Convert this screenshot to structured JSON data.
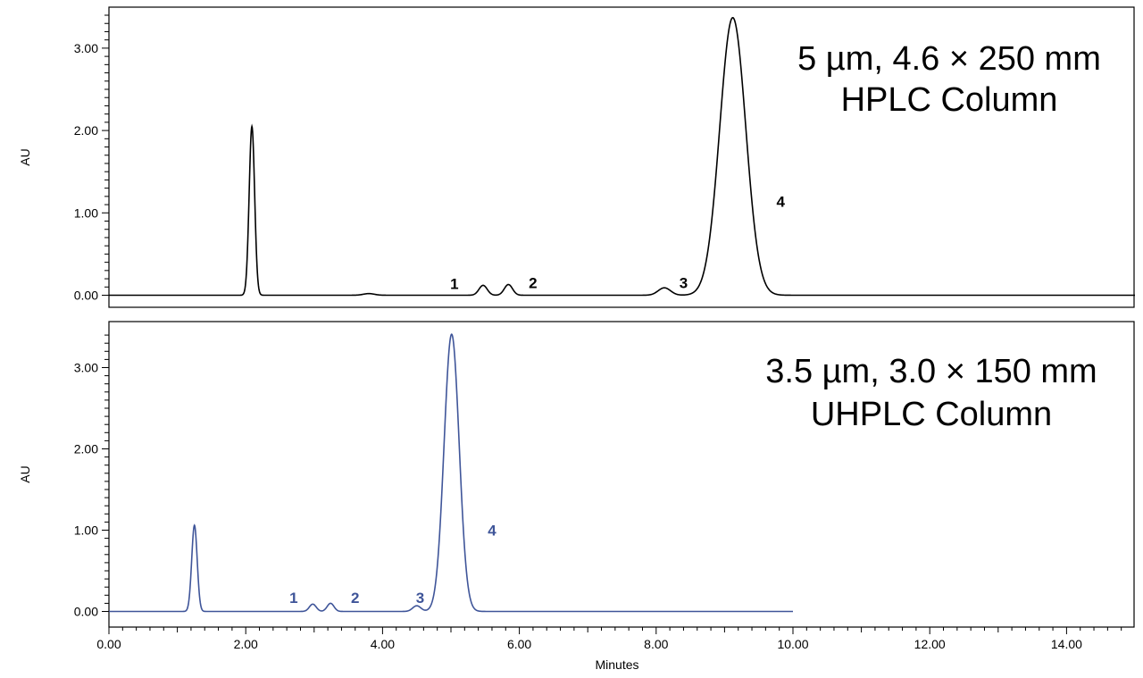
{
  "chart_data": [
    {
      "type": "line",
      "panel": "top",
      "title_lines": [
        "5 µm, 4.6 × 250 mm",
        "HPLC Column"
      ],
      "ylabel": "AU",
      "xlabel": "",
      "xlim": [
        0,
        15
      ],
      "ylim": [
        -0.15,
        3.5
      ],
      "y_ticks": [
        0.0,
        1.0,
        2.0,
        3.0
      ],
      "y_tick_labels": [
        "0.00",
        "1.00",
        "2.00",
        "3.00"
      ],
      "line_color": "#000000",
      "trace_end": 15,
      "peaks": [
        {
          "label": "",
          "t": 2.09,
          "h": 2.05,
          "w": 0.04
        },
        {
          "label": "",
          "t": 3.8,
          "h": 0.02,
          "w": 0.08
        },
        {
          "label": "1",
          "t": 5.47,
          "h": 0.12,
          "w": 0.06
        },
        {
          "label": "2",
          "t": 5.84,
          "h": 0.13,
          "w": 0.06
        },
        {
          "label": "3",
          "t": 8.12,
          "h": 0.09,
          "w": 0.09
        },
        {
          "label": "4",
          "t": 9.12,
          "h": 3.37,
          "w": 0.19
        }
      ],
      "peak_labels": [
        {
          "text": "1",
          "x": 5.05,
          "y": 0.14
        },
        {
          "text": "2",
          "x": 6.2,
          "y": 0.15
        },
        {
          "text": "3",
          "x": 8.4,
          "y": 0.15
        },
        {
          "text": "4",
          "x": 9.82,
          "y": 1.14
        }
      ]
    },
    {
      "type": "line",
      "panel": "bottom",
      "title_lines": [
        "3.5 µm, 3.0 × 150 mm",
        "UHPLC Column"
      ],
      "ylabel": "AU",
      "xlabel": "Minutes",
      "xlim": [
        0,
        15
      ],
      "ylim": [
        -0.15,
        3.5
      ],
      "y_ticks": [
        0.0,
        1.0,
        2.0,
        3.0
      ],
      "y_tick_labels": [
        "0.00",
        "1.00",
        "2.00",
        "3.00"
      ],
      "x_ticks": [
        0,
        2,
        4,
        6,
        8,
        10,
        12,
        14
      ],
      "x_tick_labels": [
        "0.00",
        "2.00",
        "4.00",
        "6.00",
        "8.00",
        "10.00",
        "12.00",
        "14.00"
      ],
      "line_color": "#3f5599",
      "trace_end": 10.0,
      "peaks": [
        {
          "label": "",
          "t": 1.25,
          "h": 1.06,
          "w": 0.04
        },
        {
          "label": "1",
          "t": 2.98,
          "h": 0.09,
          "w": 0.05
        },
        {
          "label": "2",
          "t": 3.24,
          "h": 0.1,
          "w": 0.05
        },
        {
          "label": "3",
          "t": 4.5,
          "h": 0.07,
          "w": 0.06
        },
        {
          "label": "4",
          "t": 5.01,
          "h": 3.41,
          "w": 0.11
        }
      ],
      "peak_labels": [
        {
          "text": "1",
          "x": 2.7,
          "y": 0.17
        },
        {
          "text": "2",
          "x": 3.6,
          "y": 0.17
        },
        {
          "text": "3",
          "x": 4.55,
          "y": 0.17
        },
        {
          "text": "4",
          "x": 5.6,
          "y": 1.0
        }
      ]
    }
  ]
}
